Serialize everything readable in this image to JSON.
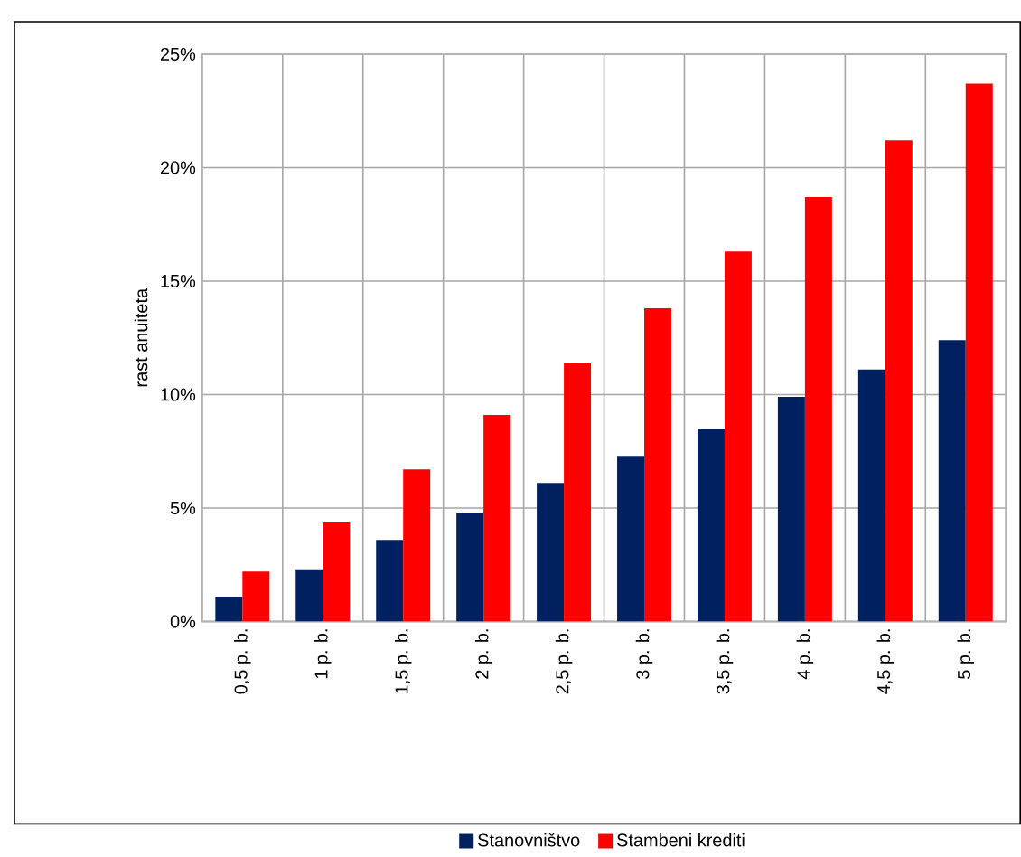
{
  "chart_data": {
    "type": "bar",
    "ylabel": "rast anuiteta",
    "categories": [
      "0,5 p. b.",
      "1 p. b.",
      "1,5 p. b.",
      "2 p. b.",
      "2,5 p. b.",
      "3 p. b.",
      "3,5 p. b.",
      "4 p. b.",
      "4,5 p. b.",
      "5 p. b."
    ],
    "series": [
      {
        "name": "Stanovništvo",
        "color": "#002060",
        "values": [
          1.1,
          2.3,
          3.6,
          4.8,
          6.1,
          7.3,
          8.5,
          9.9,
          11.1,
          12.4
        ]
      },
      {
        "name": "Stambeni krediti",
        "color": "#ff0000",
        "values": [
          2.2,
          4.4,
          6.7,
          9.1,
          11.4,
          13.8,
          16.3,
          18.7,
          21.2,
          23.7
        ]
      }
    ],
    "ylim": [
      0,
      25
    ],
    "yticks": [
      {
        "value": 0,
        "label": "0%"
      },
      {
        "value": 5,
        "label": "5%"
      },
      {
        "value": 10,
        "label": "10%"
      },
      {
        "value": 15,
        "label": "15%"
      },
      {
        "value": 20,
        "label": "20%"
      },
      {
        "value": 25,
        "label": "25%"
      }
    ],
    "grid": true,
    "legend": "bottom"
  }
}
